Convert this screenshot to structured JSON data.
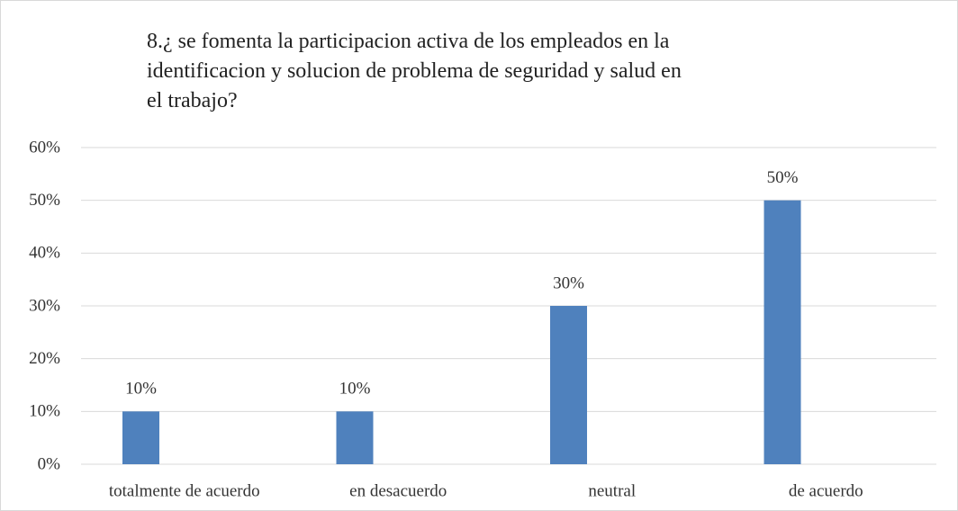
{
  "chart_data": {
    "type": "bar",
    "title": "8.¿ se fomenta la participacion activa de los empleados en la identificacion y solucion de problema de seguridad y salud en el trabajo?",
    "categories": [
      "totalmente de acuerdo",
      "en desacuerdo",
      "neutral",
      "de acuerdo"
    ],
    "values": [
      10,
      10,
      30,
      50
    ],
    "value_labels": [
      "10%",
      "10%",
      "30%",
      "50%"
    ],
    "color": "#4f81bd",
    "ylim": [
      0,
      60
    ],
    "yticks": [
      {
        "value": 0,
        "label": "0%"
      },
      {
        "value": 10,
        "label": "10%"
      },
      {
        "value": 20,
        "label": "20%"
      },
      {
        "value": 30,
        "label": "30%"
      },
      {
        "value": 40,
        "label": "40%"
      },
      {
        "value": 50,
        "label": "50%"
      },
      {
        "value": 60,
        "label": "60%"
      }
    ],
    "grid": true
  }
}
